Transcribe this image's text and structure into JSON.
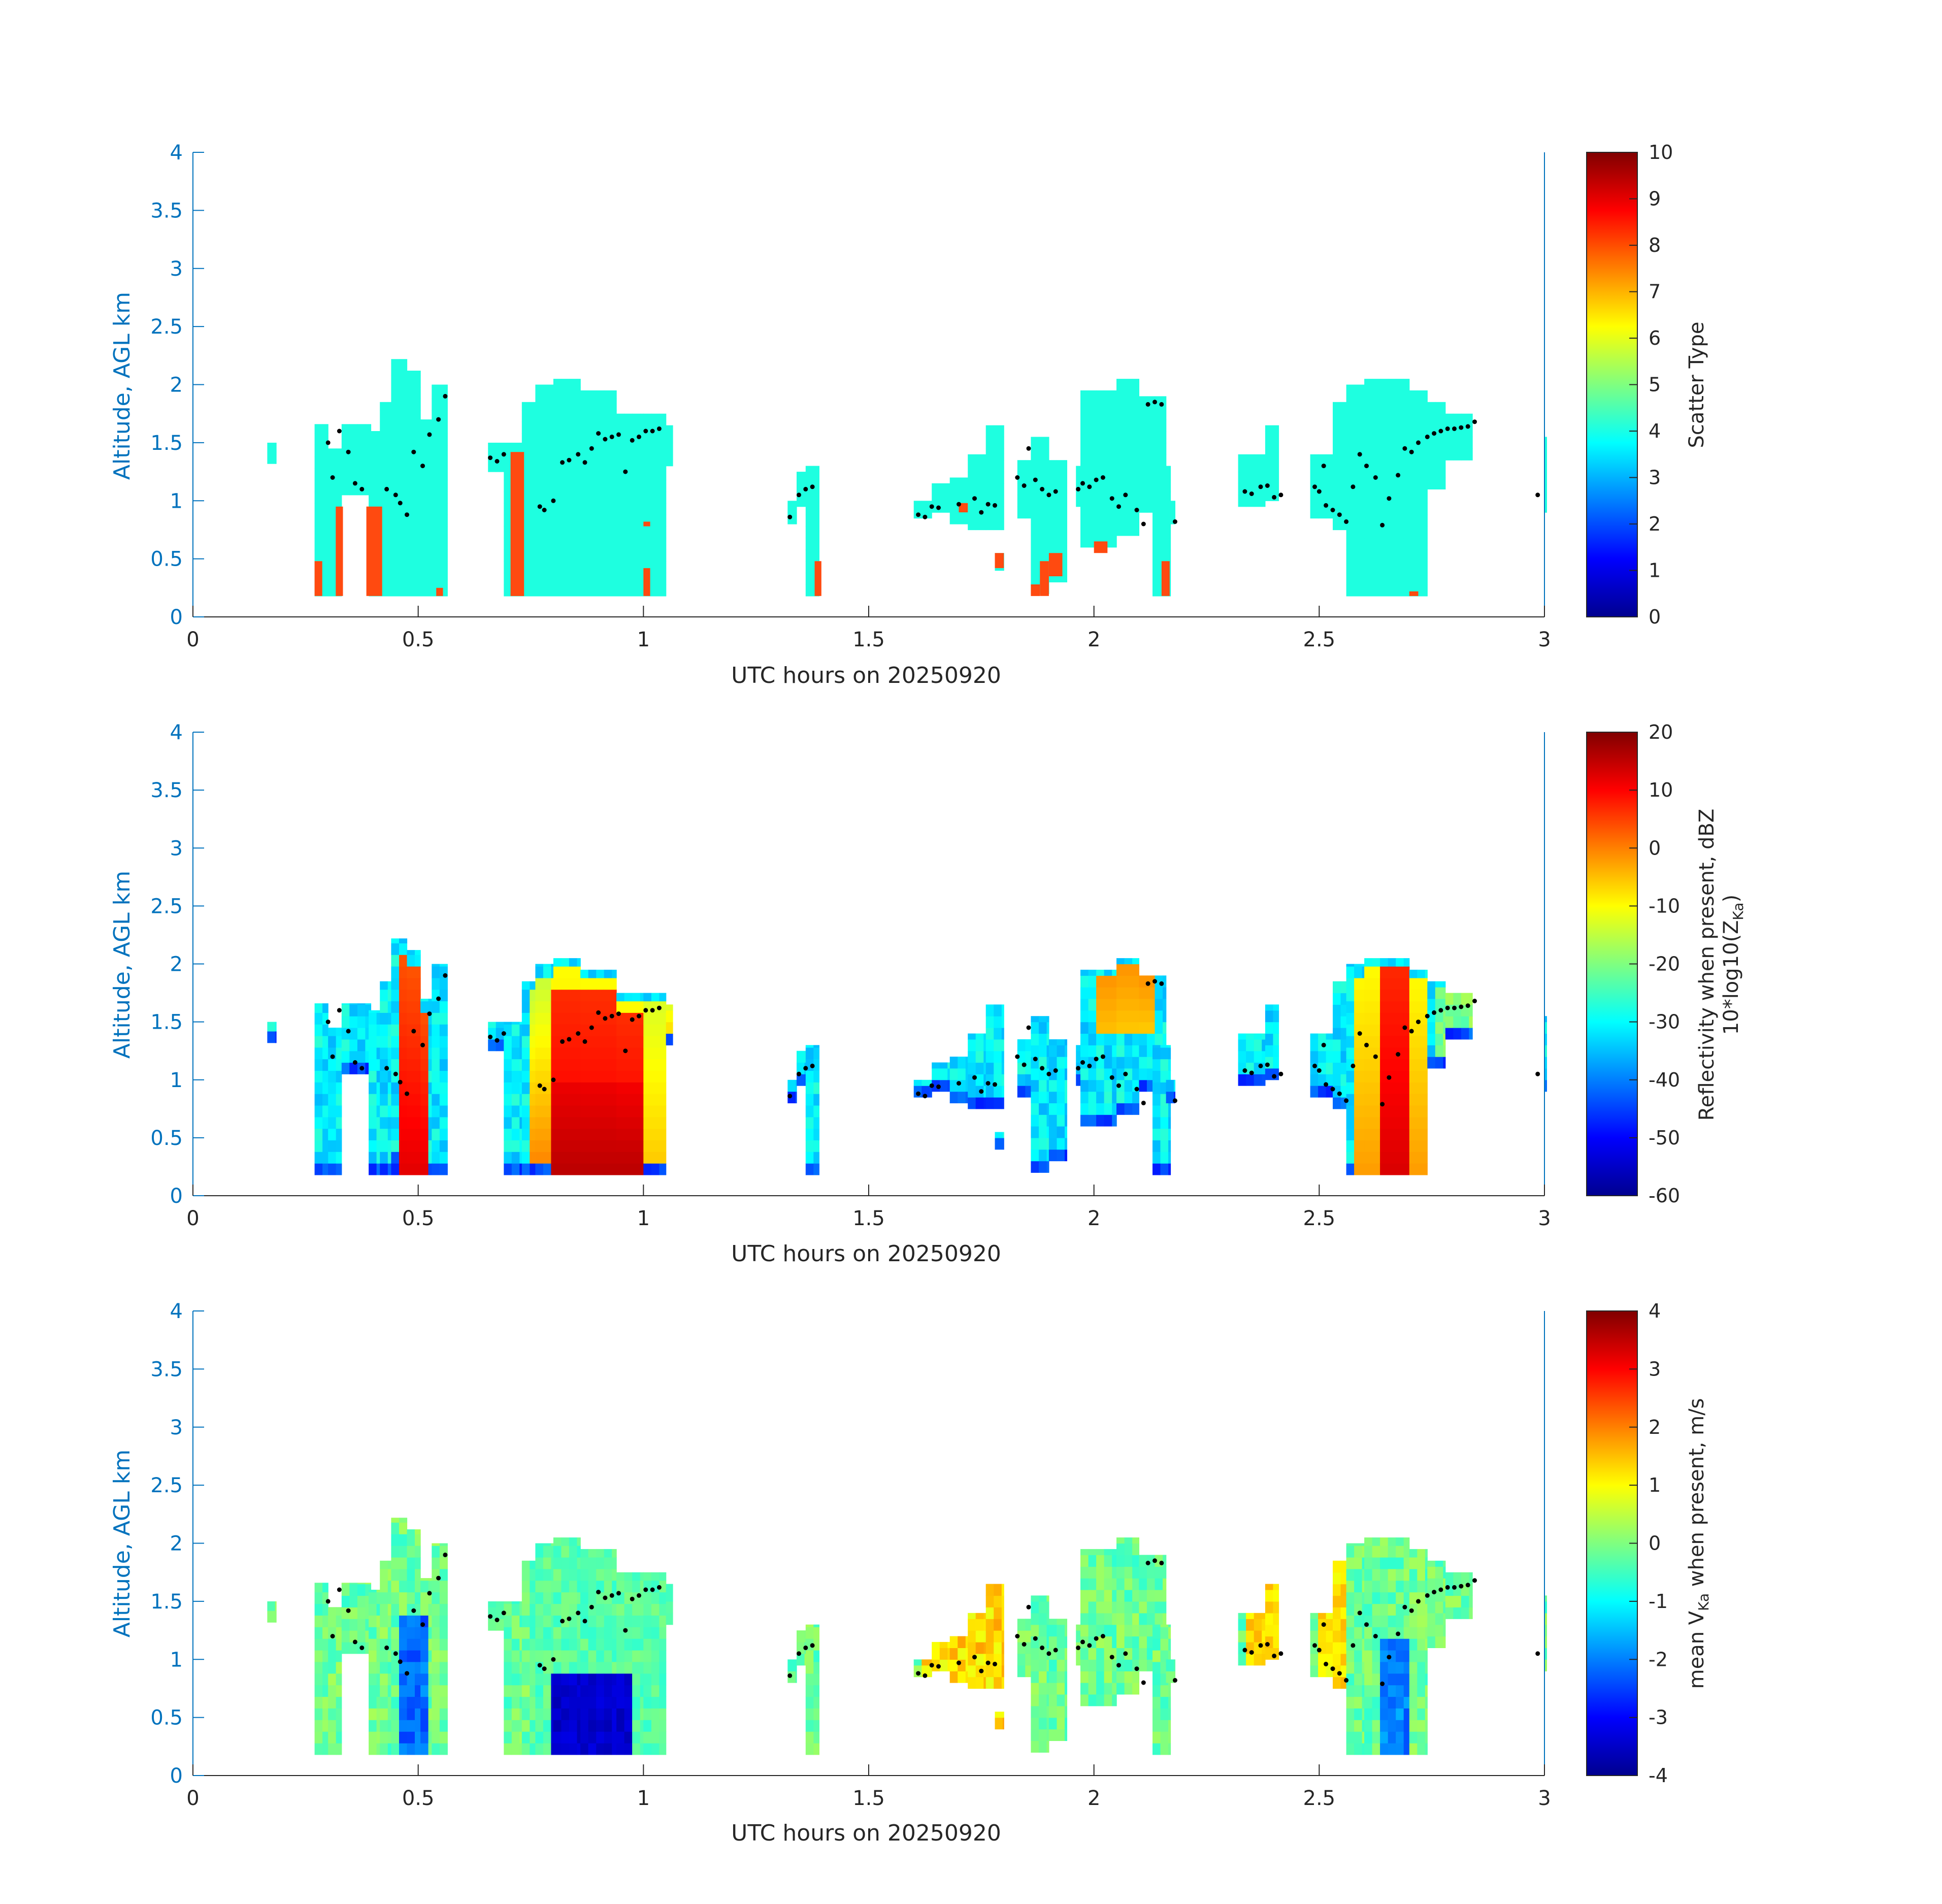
{
  "chart_data": [
    {
      "type": "heatmap",
      "xlabel": "UTC hours on 20250920",
      "ylabel": "Altitude, AGL km",
      "xlim": [
        0,
        3
      ],
      "ylim": [
        0,
        4
      ],
      "xticks": [
        "0",
        "0.5",
        "1",
        "1.5",
        "2",
        "2.5",
        "3"
      ],
      "yticks": [
        "0",
        "0.5",
        "1",
        "1.5",
        "2",
        "2.5",
        "3",
        "3.5",
        "4"
      ],
      "colorbar": {
        "label_lines": [
          "Scatter Type"
        ],
        "range": [
          0,
          10
        ],
        "ticks": [
          "0",
          "1",
          "2",
          "3",
          "4",
          "5",
          "6",
          "7",
          "8",
          "9",
          "10"
        ],
        "colormap": "jet"
      },
      "field": "scatter_type",
      "values_note": "mostly 4 (cyan) with 8 (orange-red) patches near surface"
    },
    {
      "type": "heatmap",
      "xlabel": "UTC hours on 20250920",
      "ylabel": "Altitude, AGL km",
      "xlim": [
        0,
        3
      ],
      "ylim": [
        0,
        4
      ],
      "xticks": [
        "0",
        "0.5",
        "1",
        "1.5",
        "2",
        "2.5",
        "3"
      ],
      "yticks": [
        "0",
        "0.5",
        "1",
        "1.5",
        "2",
        "2.5",
        "3",
        "3.5",
        "4"
      ],
      "colorbar": {
        "label_lines": [
          "Reflectivity when present, dBZ",
          "10*log10(Z",
          "Ka",
          ")"
        ],
        "range": [
          -60,
          20
        ],
        "ticks": [
          "-60",
          "-50",
          "-40",
          "-30",
          "-20",
          "-10",
          "0",
          "10",
          "20"
        ],
        "colormap": "jet"
      },
      "field": "reflectivity"
    },
    {
      "type": "heatmap",
      "xlabel": "UTC hours on 20250920",
      "ylabel": "Altitude, AGL km",
      "xlim": [
        0,
        3
      ],
      "ylim": [
        0,
        4
      ],
      "xticks": [
        "0",
        "0.5",
        "1",
        "1.5",
        "2",
        "2.5",
        "3"
      ],
      "yticks": [
        "0",
        "0.5",
        "1",
        "1.5",
        "2",
        "2.5",
        "3",
        "3.5",
        "4"
      ],
      "colorbar": {
        "label_lines": [
          "mean V",
          "Ka",
          " when present, m/s"
        ],
        "range": [
          -4,
          4
        ],
        "ticks": [
          "-4",
          "-3",
          "-2",
          "-1",
          "0",
          "1",
          "2",
          "3",
          "4"
        ],
        "colormap": "jet"
      },
      "field": "velocity"
    }
  ],
  "colors": {
    "axis_blue": "#0072BD",
    "axis_dark": "#262626",
    "cyan_type4": "#1effe0",
    "orange_type8": "#ff4a10",
    "dot": "#000000"
  },
  "cloud_columns": [
    {
      "t0": 0.165,
      "t1": 0.185,
      "base": 1.32,
      "top": 1.5
    },
    {
      "t0": 0.27,
      "t1": 0.3,
      "base": 0.18,
      "top": 1.66
    },
    {
      "t0": 0.3,
      "t1": 0.33,
      "base": 0.18,
      "top": 1.45
    },
    {
      "t0": 0.33,
      "t1": 0.395,
      "base": 1.05,
      "top": 1.66
    },
    {
      "t0": 0.39,
      "t1": 0.415,
      "base": 0.18,
      "top": 1.6
    },
    {
      "t0": 0.415,
      "t1": 0.44,
      "base": 0.18,
      "top": 1.85
    },
    {
      "t0": 0.44,
      "t1": 0.475,
      "base": 0.18,
      "top": 2.22
    },
    {
      "t0": 0.475,
      "t1": 0.505,
      "base": 0.18,
      "top": 2.12
    },
    {
      "t0": 0.505,
      "t1": 0.53,
      "base": 0.18,
      "top": 1.7
    },
    {
      "t0": 0.53,
      "t1": 0.565,
      "base": 0.18,
      "top": 2.0
    },
    {
      "t0": 0.655,
      "t1": 0.69,
      "base": 1.25,
      "top": 1.5
    },
    {
      "t0": 0.69,
      "t1": 0.73,
      "base": 0.18,
      "top": 1.5
    },
    {
      "t0": 0.73,
      "t1": 0.76,
      "base": 0.18,
      "top": 1.85
    },
    {
      "t0": 0.76,
      "t1": 0.8,
      "base": 0.18,
      "top": 2.0
    },
    {
      "t0": 0.8,
      "t1": 0.86,
      "base": 0.18,
      "top": 2.05
    },
    {
      "t0": 0.86,
      "t1": 0.94,
      "base": 0.18,
      "top": 1.95
    },
    {
      "t0": 0.94,
      "t1": 1.0,
      "base": 0.18,
      "top": 1.75
    },
    {
      "t0": 1.0,
      "t1": 1.05,
      "base": 0.18,
      "top": 1.75
    },
    {
      "t0": 1.05,
      "t1": 1.065,
      "base": 1.3,
      "top": 1.65
    },
    {
      "t0": 1.32,
      "t1": 1.34,
      "base": 0.8,
      "top": 1.0
    },
    {
      "t0": 1.34,
      "t1": 1.36,
      "base": 0.95,
      "top": 1.25
    },
    {
      "t0": 1.36,
      "t1": 1.39,
      "base": 0.18,
      "top": 1.3
    },
    {
      "t0": 1.6,
      "t1": 1.64,
      "base": 0.85,
      "top": 1.0
    },
    {
      "t0": 1.64,
      "t1": 1.68,
      "base": 0.9,
      "top": 1.15
    },
    {
      "t0": 1.68,
      "t1": 1.72,
      "base": 0.8,
      "top": 1.2
    },
    {
      "t0": 1.72,
      "t1": 1.76,
      "base": 0.75,
      "top": 1.4
    },
    {
      "t0": 1.76,
      "t1": 1.8,
      "base": 0.75,
      "top": 1.65
    },
    {
      "t0": 1.78,
      "t1": 1.8,
      "base": 0.4,
      "top": 0.55
    },
    {
      "t0": 1.83,
      "t1": 1.86,
      "base": 0.85,
      "top": 1.35
    },
    {
      "t0": 1.86,
      "t1": 1.9,
      "base": 0.2,
      "top": 1.55
    },
    {
      "t0": 1.9,
      "t1": 1.94,
      "base": 0.3,
      "top": 1.35
    },
    {
      "t0": 1.96,
      "t1": 1.98,
      "base": 0.95,
      "top": 1.3
    },
    {
      "t0": 1.97,
      "t1": 2.05,
      "base": 0.6,
      "top": 1.95
    },
    {
      "t0": 2.05,
      "t1": 2.1,
      "base": 0.7,
      "top": 2.05
    },
    {
      "t0": 2.1,
      "t1": 2.16,
      "base": 0.9,
      "top": 1.9
    },
    {
      "t0": 2.13,
      "t1": 2.17,
      "base": 0.18,
      "top": 1.3
    },
    {
      "t0": 2.16,
      "t1": 2.18,
      "base": 0.8,
      "top": 1.0
    },
    {
      "t0": 2.32,
      "t1": 2.38,
      "base": 0.95,
      "top": 1.4
    },
    {
      "t0": 2.38,
      "t1": 2.41,
      "base": 1.0,
      "top": 1.65
    },
    {
      "t0": 2.48,
      "t1": 2.53,
      "base": 0.85,
      "top": 1.4
    },
    {
      "t0": 2.53,
      "t1": 2.56,
      "base": 0.75,
      "top": 1.85
    },
    {
      "t0": 2.56,
      "t1": 2.6,
      "base": 0.18,
      "top": 2.0
    },
    {
      "t0": 2.6,
      "t1": 2.7,
      "base": 0.18,
      "top": 2.05
    },
    {
      "t0": 2.7,
      "t1": 2.74,
      "base": 0.18,
      "top": 1.95
    },
    {
      "t0": 2.74,
      "t1": 2.78,
      "base": 1.1,
      "top": 1.85
    },
    {
      "t0": 2.78,
      "t1": 2.84,
      "base": 1.35,
      "top": 1.75
    },
    {
      "t0": 3.0,
      "t1": 3.005,
      "base": 0.9,
      "top": 1.55
    }
  ],
  "orange_patches": [
    {
      "t0": 0.27,
      "t1": 0.287,
      "base": 0.18,
      "top": 0.48
    },
    {
      "t0": 0.317,
      "t1": 0.333,
      "base": 0.18,
      "top": 0.95
    },
    {
      "t0": 0.385,
      "t1": 0.42,
      "base": 0.18,
      "top": 0.95
    },
    {
      "t0": 0.54,
      "t1": 0.555,
      "base": 0.18,
      "top": 0.25
    },
    {
      "t0": 0.705,
      "t1": 0.735,
      "base": 0.18,
      "top": 1.42
    },
    {
      "t0": 1.0,
      "t1": 1.015,
      "base": 0.18,
      "top": 0.42
    },
    {
      "t0": 1.0,
      "t1": 1.015,
      "base": 0.78,
      "top": 0.82
    },
    {
      "t0": 1.38,
      "t1": 1.395,
      "base": 0.18,
      "top": 0.48
    },
    {
      "t0": 1.7,
      "t1": 1.72,
      "base": 0.9,
      "top": 0.98
    },
    {
      "t0": 1.78,
      "t1": 1.8,
      "base": 0.42,
      "top": 0.55
    },
    {
      "t0": 1.86,
      "t1": 1.88,
      "base": 0.18,
      "top": 0.28
    },
    {
      "t0": 1.88,
      "t1": 1.9,
      "base": 0.18,
      "top": 0.48
    },
    {
      "t0": 1.9,
      "t1": 1.93,
      "base": 0.35,
      "top": 0.55
    },
    {
      "t0": 2.0,
      "t1": 2.03,
      "base": 0.55,
      "top": 0.65
    },
    {
      "t0": 2.15,
      "t1": 2.168,
      "base": 0.18,
      "top": 0.48
    },
    {
      "t0": 2.7,
      "t1": 2.72,
      "base": 0.18,
      "top": 0.22
    }
  ],
  "base_dots": [
    {
      "t": 0.3,
      "alt": 1.5
    },
    {
      "t": 0.31,
      "alt": 1.2
    },
    {
      "t": 0.325,
      "alt": 1.6
    },
    {
      "t": 0.345,
      "alt": 1.42
    },
    {
      "t": 0.36,
      "alt": 1.15
    },
    {
      "t": 0.375,
      "alt": 1.1
    },
    {
      "t": 0.43,
      "alt": 1.1
    },
    {
      "t": 0.45,
      "alt": 1.05
    },
    {
      "t": 0.46,
      "alt": 0.98
    },
    {
      "t": 0.475,
      "alt": 0.88
    },
    {
      "t": 0.49,
      "alt": 1.42
    },
    {
      "t": 0.51,
      "alt": 1.3
    },
    {
      "t": 0.525,
      "alt": 1.57
    },
    {
      "t": 0.545,
      "alt": 1.7
    },
    {
      "t": 0.56,
      "alt": 1.9
    },
    {
      "t": 0.66,
      "alt": 1.37
    },
    {
      "t": 0.675,
      "alt": 1.34
    },
    {
      "t": 0.69,
      "alt": 1.4
    },
    {
      "t": 0.77,
      "alt": 0.95
    },
    {
      "t": 0.78,
      "alt": 0.92
    },
    {
      "t": 0.8,
      "alt": 1.0
    },
    {
      "t": 0.82,
      "alt": 1.33
    },
    {
      "t": 0.835,
      "alt": 1.35
    },
    {
      "t": 0.855,
      "alt": 1.4
    },
    {
      "t": 0.87,
      "alt": 1.33
    },
    {
      "t": 0.885,
      "alt": 1.45
    },
    {
      "t": 0.9,
      "alt": 1.58
    },
    {
      "t": 0.915,
      "alt": 1.53
    },
    {
      "t": 0.93,
      "alt": 1.55
    },
    {
      "t": 0.945,
      "alt": 1.57
    },
    {
      "t": 0.96,
      "alt": 1.25
    },
    {
      "t": 0.975,
      "alt": 1.52
    },
    {
      "t": 0.99,
      "alt": 1.55
    },
    {
      "t": 1.005,
      "alt": 1.6
    },
    {
      "t": 1.02,
      "alt": 1.6
    },
    {
      "t": 1.035,
      "alt": 1.62
    },
    {
      "t": 1.325,
      "alt": 0.86
    },
    {
      "t": 1.345,
      "alt": 1.05
    },
    {
      "t": 1.36,
      "alt": 1.1
    },
    {
      "t": 1.375,
      "alt": 1.12
    },
    {
      "t": 1.61,
      "alt": 0.88
    },
    {
      "t": 1.625,
      "alt": 0.86
    },
    {
      "t": 1.64,
      "alt": 0.95
    },
    {
      "t": 1.655,
      "alt": 0.94
    },
    {
      "t": 1.7,
      "alt": 0.97
    },
    {
      "t": 1.735,
      "alt": 1.02
    },
    {
      "t": 1.75,
      "alt": 0.9
    },
    {
      "t": 1.765,
      "alt": 0.97
    },
    {
      "t": 1.78,
      "alt": 0.96
    },
    {
      "t": 1.83,
      "alt": 1.2
    },
    {
      "t": 1.845,
      "alt": 1.13
    },
    {
      "t": 1.855,
      "alt": 1.45
    },
    {
      "t": 1.87,
      "alt": 1.18
    },
    {
      "t": 1.885,
      "alt": 1.1
    },
    {
      "t": 1.9,
      "alt": 1.05
    },
    {
      "t": 1.915,
      "alt": 1.08
    },
    {
      "t": 1.965,
      "alt": 1.1
    },
    {
      "t": 1.975,
      "alt": 1.15
    },
    {
      "t": 1.99,
      "alt": 1.12
    },
    {
      "t": 2.005,
      "alt": 1.18
    },
    {
      "t": 2.02,
      "alt": 1.2
    },
    {
      "t": 2.04,
      "alt": 1.02
    },
    {
      "t": 2.055,
      "alt": 0.95
    },
    {
      "t": 2.07,
      "alt": 1.05
    },
    {
      "t": 2.095,
      "alt": 0.92
    },
    {
      "t": 2.11,
      "alt": 0.8
    },
    {
      "t": 2.12,
      "alt": 1.83
    },
    {
      "t": 2.135,
      "alt": 1.85
    },
    {
      "t": 2.15,
      "alt": 1.83
    },
    {
      "t": 2.18,
      "alt": 0.82
    },
    {
      "t": 2.335,
      "alt": 1.08
    },
    {
      "t": 2.35,
      "alt": 1.06
    },
    {
      "t": 2.37,
      "alt": 1.12
    },
    {
      "t": 2.385,
      "alt": 1.13
    },
    {
      "t": 2.4,
      "alt": 1.03
    },
    {
      "t": 2.415,
      "alt": 1.05
    },
    {
      "t": 2.49,
      "alt": 1.12
    },
    {
      "t": 2.5,
      "alt": 1.08
    },
    {
      "t": 2.51,
      "alt": 1.3
    },
    {
      "t": 2.515,
      "alt": 0.96
    },
    {
      "t": 2.53,
      "alt": 0.92
    },
    {
      "t": 2.545,
      "alt": 0.88
    },
    {
      "t": 2.56,
      "alt": 0.82
    },
    {
      "t": 2.575,
      "alt": 1.12
    },
    {
      "t": 2.59,
      "alt": 1.4
    },
    {
      "t": 2.605,
      "alt": 1.3
    },
    {
      "t": 2.625,
      "alt": 1.2
    },
    {
      "t": 2.64,
      "alt": 0.79
    },
    {
      "t": 2.655,
      "alt": 1.02
    },
    {
      "t": 2.675,
      "alt": 1.22
    },
    {
      "t": 2.69,
      "alt": 1.45
    },
    {
      "t": 2.705,
      "alt": 1.42
    },
    {
      "t": 2.72,
      "alt": 1.5
    },
    {
      "t": 2.74,
      "alt": 1.55
    },
    {
      "t": 2.755,
      "alt": 1.58
    },
    {
      "t": 2.77,
      "alt": 1.6
    },
    {
      "t": 2.785,
      "alt": 1.62
    },
    {
      "t": 2.8,
      "alt": 1.62
    },
    {
      "t": 2.815,
      "alt": 1.63
    },
    {
      "t": 2.83,
      "alt": 1.64
    },
    {
      "t": 2.845,
      "alt": 1.68
    },
    {
      "t": 2.985,
      "alt": 1.05
    }
  ]
}
